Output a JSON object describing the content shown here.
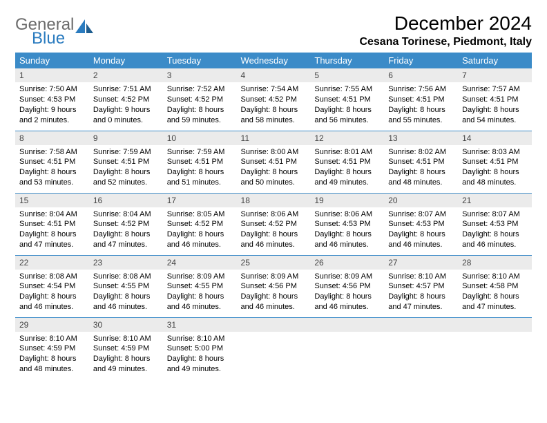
{
  "logo": {
    "word1": "General",
    "word2": "Blue"
  },
  "title": "December 2024",
  "location": "Cesana Torinese, Piedmont, Italy",
  "colors": {
    "header_bg": "#3b8bc8",
    "header_fg": "#ffffff",
    "daynum_bg": "#ebebeb",
    "rule": "#3b8bc8",
    "logo_gray": "#6b6b6b",
    "logo_blue": "#2a7bbf"
  },
  "weekdays": [
    "Sunday",
    "Monday",
    "Tuesday",
    "Wednesday",
    "Thursday",
    "Friday",
    "Saturday"
  ],
  "weeks": [
    [
      {
        "n": "1",
        "sr": "Sunrise: 7:50 AM",
        "ss": "Sunset: 4:53 PM",
        "dl": "Daylight: 9 hours and 2 minutes."
      },
      {
        "n": "2",
        "sr": "Sunrise: 7:51 AM",
        "ss": "Sunset: 4:52 PM",
        "dl": "Daylight: 9 hours and 0 minutes."
      },
      {
        "n": "3",
        "sr": "Sunrise: 7:52 AM",
        "ss": "Sunset: 4:52 PM",
        "dl": "Daylight: 8 hours and 59 minutes."
      },
      {
        "n": "4",
        "sr": "Sunrise: 7:54 AM",
        "ss": "Sunset: 4:52 PM",
        "dl": "Daylight: 8 hours and 58 minutes."
      },
      {
        "n": "5",
        "sr": "Sunrise: 7:55 AM",
        "ss": "Sunset: 4:51 PM",
        "dl": "Daylight: 8 hours and 56 minutes."
      },
      {
        "n": "6",
        "sr": "Sunrise: 7:56 AM",
        "ss": "Sunset: 4:51 PM",
        "dl": "Daylight: 8 hours and 55 minutes."
      },
      {
        "n": "7",
        "sr": "Sunrise: 7:57 AM",
        "ss": "Sunset: 4:51 PM",
        "dl": "Daylight: 8 hours and 54 minutes."
      }
    ],
    [
      {
        "n": "8",
        "sr": "Sunrise: 7:58 AM",
        "ss": "Sunset: 4:51 PM",
        "dl": "Daylight: 8 hours and 53 minutes."
      },
      {
        "n": "9",
        "sr": "Sunrise: 7:59 AM",
        "ss": "Sunset: 4:51 PM",
        "dl": "Daylight: 8 hours and 52 minutes."
      },
      {
        "n": "10",
        "sr": "Sunrise: 7:59 AM",
        "ss": "Sunset: 4:51 PM",
        "dl": "Daylight: 8 hours and 51 minutes."
      },
      {
        "n": "11",
        "sr": "Sunrise: 8:00 AM",
        "ss": "Sunset: 4:51 PM",
        "dl": "Daylight: 8 hours and 50 minutes."
      },
      {
        "n": "12",
        "sr": "Sunrise: 8:01 AM",
        "ss": "Sunset: 4:51 PM",
        "dl": "Daylight: 8 hours and 49 minutes."
      },
      {
        "n": "13",
        "sr": "Sunrise: 8:02 AM",
        "ss": "Sunset: 4:51 PM",
        "dl": "Daylight: 8 hours and 48 minutes."
      },
      {
        "n": "14",
        "sr": "Sunrise: 8:03 AM",
        "ss": "Sunset: 4:51 PM",
        "dl": "Daylight: 8 hours and 48 minutes."
      }
    ],
    [
      {
        "n": "15",
        "sr": "Sunrise: 8:04 AM",
        "ss": "Sunset: 4:51 PM",
        "dl": "Daylight: 8 hours and 47 minutes."
      },
      {
        "n": "16",
        "sr": "Sunrise: 8:04 AM",
        "ss": "Sunset: 4:52 PM",
        "dl": "Daylight: 8 hours and 47 minutes."
      },
      {
        "n": "17",
        "sr": "Sunrise: 8:05 AM",
        "ss": "Sunset: 4:52 PM",
        "dl": "Daylight: 8 hours and 46 minutes."
      },
      {
        "n": "18",
        "sr": "Sunrise: 8:06 AM",
        "ss": "Sunset: 4:52 PM",
        "dl": "Daylight: 8 hours and 46 minutes."
      },
      {
        "n": "19",
        "sr": "Sunrise: 8:06 AM",
        "ss": "Sunset: 4:53 PM",
        "dl": "Daylight: 8 hours and 46 minutes."
      },
      {
        "n": "20",
        "sr": "Sunrise: 8:07 AM",
        "ss": "Sunset: 4:53 PM",
        "dl": "Daylight: 8 hours and 46 minutes."
      },
      {
        "n": "21",
        "sr": "Sunrise: 8:07 AM",
        "ss": "Sunset: 4:53 PM",
        "dl": "Daylight: 8 hours and 46 minutes."
      }
    ],
    [
      {
        "n": "22",
        "sr": "Sunrise: 8:08 AM",
        "ss": "Sunset: 4:54 PM",
        "dl": "Daylight: 8 hours and 46 minutes."
      },
      {
        "n": "23",
        "sr": "Sunrise: 8:08 AM",
        "ss": "Sunset: 4:55 PM",
        "dl": "Daylight: 8 hours and 46 minutes."
      },
      {
        "n": "24",
        "sr": "Sunrise: 8:09 AM",
        "ss": "Sunset: 4:55 PM",
        "dl": "Daylight: 8 hours and 46 minutes."
      },
      {
        "n": "25",
        "sr": "Sunrise: 8:09 AM",
        "ss": "Sunset: 4:56 PM",
        "dl": "Daylight: 8 hours and 46 minutes."
      },
      {
        "n": "26",
        "sr": "Sunrise: 8:09 AM",
        "ss": "Sunset: 4:56 PM",
        "dl": "Daylight: 8 hours and 46 minutes."
      },
      {
        "n": "27",
        "sr": "Sunrise: 8:10 AM",
        "ss": "Sunset: 4:57 PM",
        "dl": "Daylight: 8 hours and 47 minutes."
      },
      {
        "n": "28",
        "sr": "Sunrise: 8:10 AM",
        "ss": "Sunset: 4:58 PM",
        "dl": "Daylight: 8 hours and 47 minutes."
      }
    ],
    [
      {
        "n": "29",
        "sr": "Sunrise: 8:10 AM",
        "ss": "Sunset: 4:59 PM",
        "dl": "Daylight: 8 hours and 48 minutes."
      },
      {
        "n": "30",
        "sr": "Sunrise: 8:10 AM",
        "ss": "Sunset: 4:59 PM",
        "dl": "Daylight: 8 hours and 49 minutes."
      },
      {
        "n": "31",
        "sr": "Sunrise: 8:10 AM",
        "ss": "Sunset: 5:00 PM",
        "dl": "Daylight: 8 hours and 49 minutes."
      },
      null,
      null,
      null,
      null
    ]
  ]
}
